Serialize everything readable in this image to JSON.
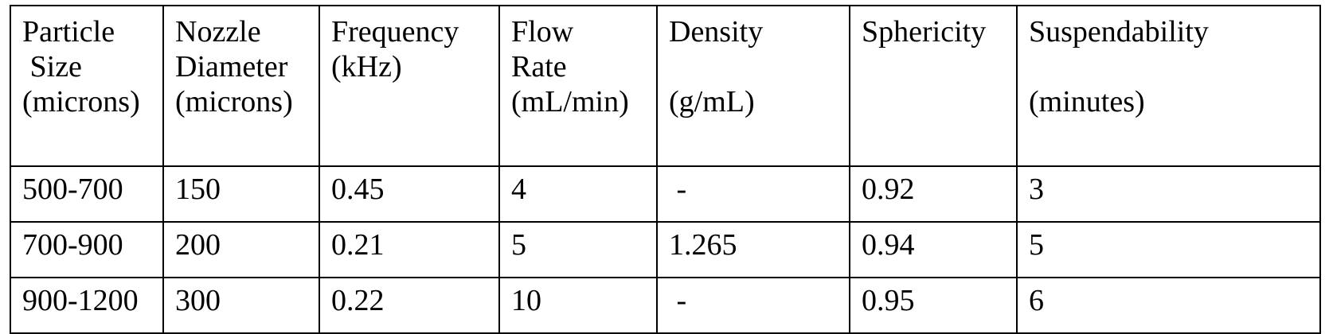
{
  "table": {
    "headers": [
      "Particle\n Size\n(microns)",
      "Nozzle\nDiameter\n(microns)",
      "Frequency\n(kHz)",
      "Flow\nRate\n(mL/min)",
      "Density\n\n(g/mL)",
      "Sphericity",
      "Suspendability\n\n(minutes)"
    ],
    "rows": [
      [
        "500-700",
        "150",
        "0.45",
        "4",
        " -",
        "0.92",
        "3"
      ],
      [
        "700-900",
        "200",
        "0.21",
        "5",
        "1.265",
        "0.94",
        "5"
      ],
      [
        "900-1200",
        "300",
        "0.22",
        "10",
        " -",
        "0.95",
        "6"
      ]
    ]
  }
}
